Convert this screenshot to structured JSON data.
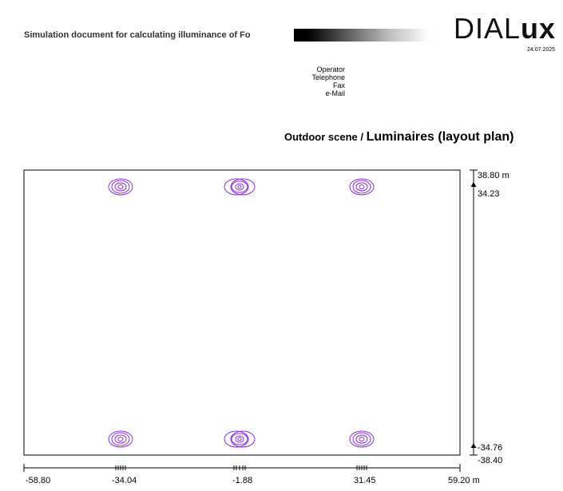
{
  "header": {
    "doc_title": "Simulation document for calculating illuminance of Fo",
    "logo_light": "DIAL",
    "logo_bold": "ux",
    "date": "24.07.2025"
  },
  "contact": {
    "operator": "Operator",
    "telephone": "Telephone",
    "fax": "Fax",
    "email": "e-Mail"
  },
  "section": {
    "title_part1": "Outdoor scene / ",
    "title_part2": "Luminaires (layout plan)"
  },
  "plan": {
    "x_ticks": [
      "-58.80",
      "-34.04",
      "-1.88",
      "31.45",
      "59.20 m"
    ],
    "y_ticks": {
      "top": "38.80 m",
      "upper": "34.23",
      "lower": "-34.76",
      "bottom": "-38.40"
    },
    "luminaire_color": "#8a2be2"
  }
}
